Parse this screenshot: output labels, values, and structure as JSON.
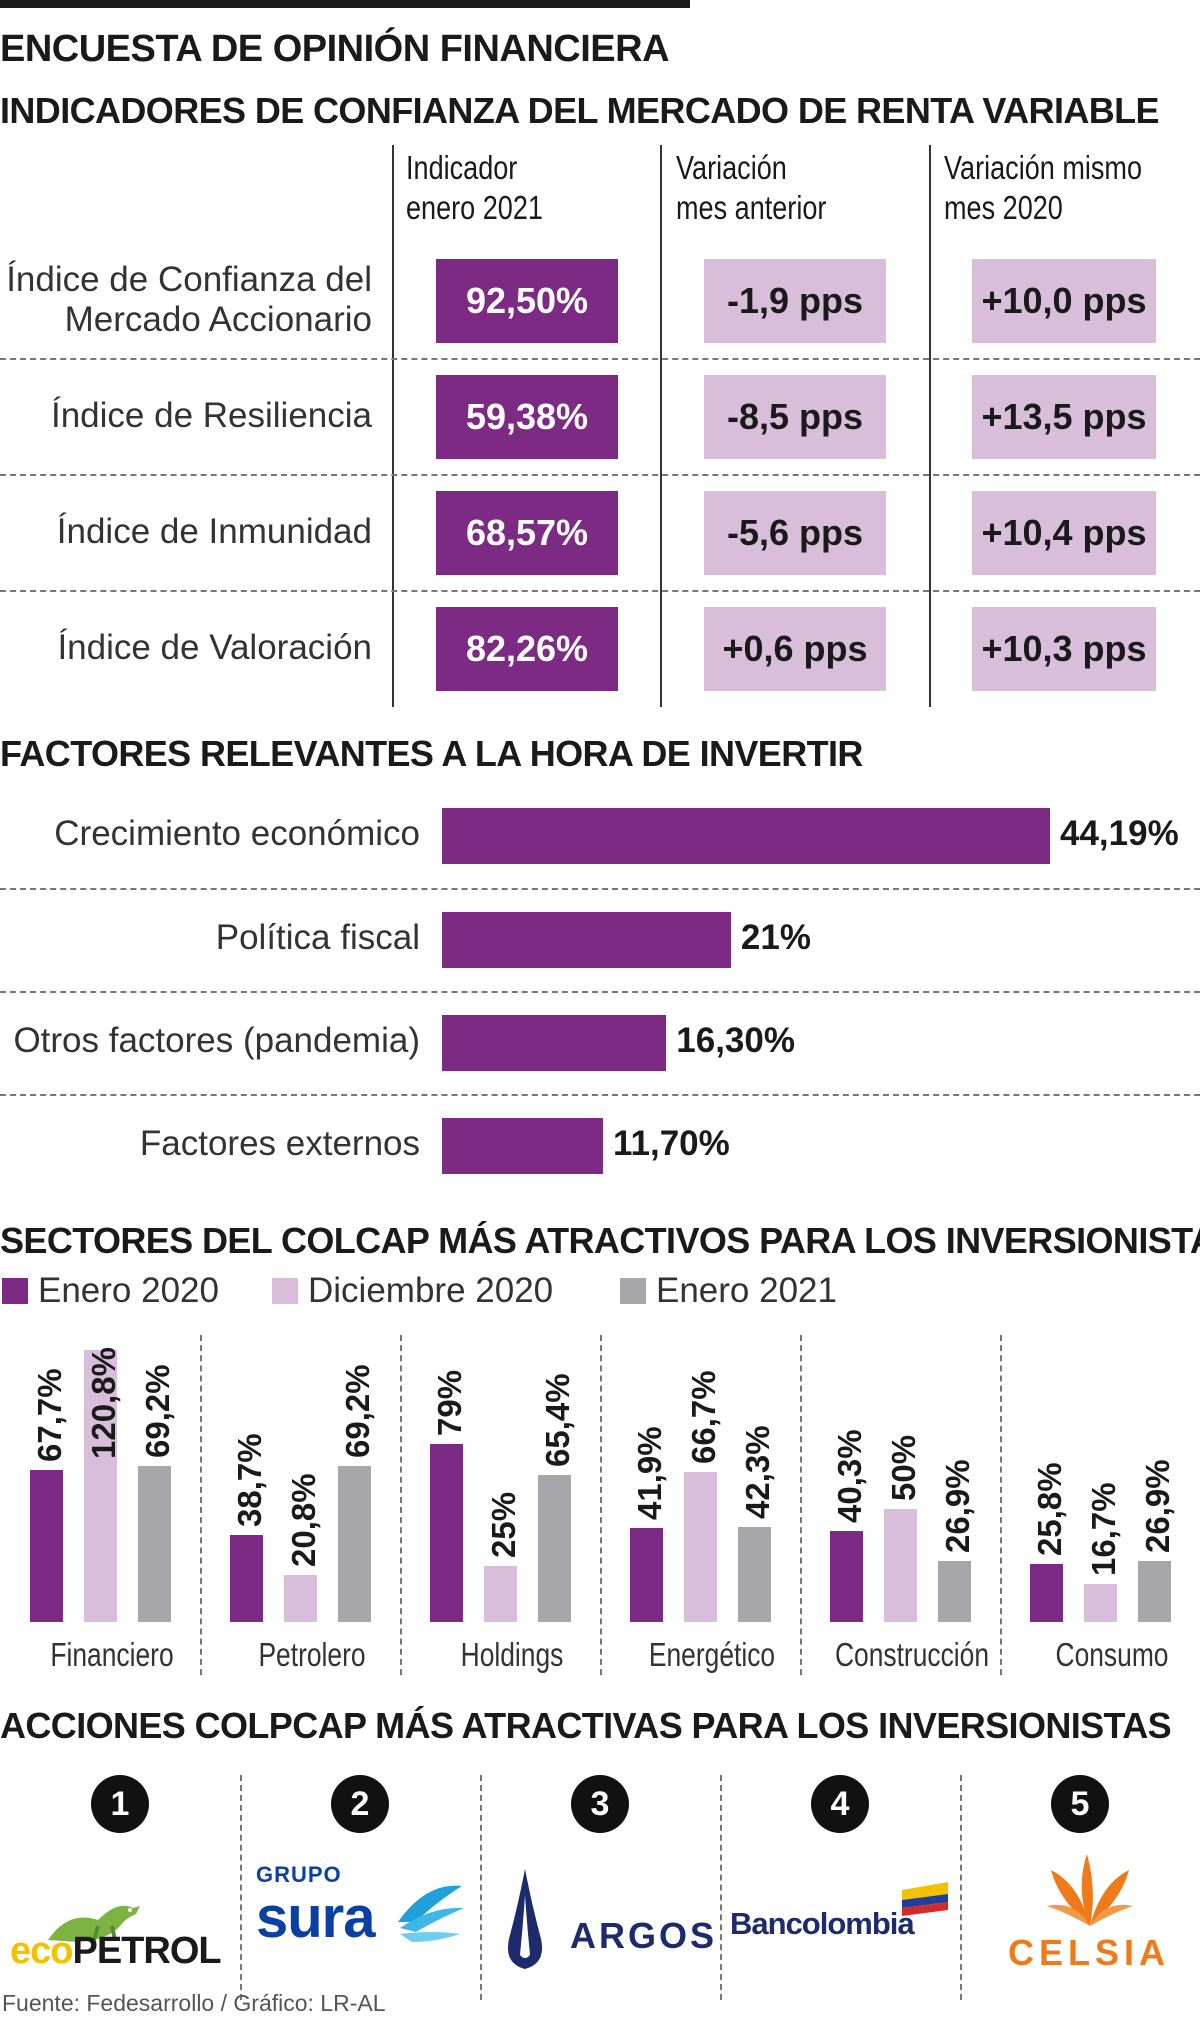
{
  "header": {
    "title": "ENCUESTA DE OPINIÓN FINANCIERA",
    "subtitle": "INDICADORES DE CONFIANZA DEL MERCADO DE RENTA VARIABLE"
  },
  "indicators": {
    "columns": [
      "Indicador enero 2021",
      "Variación mes anterior",
      "Variación mismo mes 2020"
    ],
    "col1_line1": "Indicador",
    "col1_line2": "enero 2021",
    "col2_line1": "Variación",
    "col2_line2": "mes anterior",
    "col3_line1": "Variación mismo",
    "col3_line2": "mes 2020",
    "rows": [
      {
        "label_line1": "Índice de Confianza del",
        "label_line2": "Mercado Accionario",
        "value": "92,50%",
        "var_month": "-1,9 pps",
        "var_year": "+10,0 pps"
      },
      {
        "label_line1": "Índice de Resiliencia",
        "label_line2": "",
        "value": "59,38%",
        "var_month": "-8,5 pps",
        "var_year": "+13,5 pps"
      },
      {
        "label_line1": "Índice de Inmunidad",
        "label_line2": "",
        "value": "68,57%",
        "var_month": "-5,6 pps",
        "var_year": "+10,4 pps"
      },
      {
        "label_line1": "Índice de Valoración",
        "label_line2": "",
        "value": "82,26%",
        "var_month": "+0,6 pps",
        "var_year": "+10,3 pps"
      }
    ]
  },
  "factors_title": "FACTORES RELEVANTES A LA HORA DE INVERTIR",
  "sectors_title": "SECTORES DEL COLCAP MÁS ATRACTIVOS PARA LOS INVERSIONISTAS",
  "stocks": {
    "title": "ACCIONES COLPCAP MÁS ATRACTIVAS PARA LOS INVERSIONISTAS",
    "items": [
      {
        "rank": "1",
        "name": "ecopetrol"
      },
      {
        "rank": "2",
        "name": "GRUPO sura"
      },
      {
        "rank": "3",
        "name": "ARGOS"
      },
      {
        "rank": "4",
        "name": "Bancolombia"
      },
      {
        "rank": "5",
        "name": "CELSIA"
      }
    ]
  },
  "logo_text": {
    "eco1": "eco",
    "eco2": "PETROL",
    "sura_small": "GRUPO",
    "sura_big": "sura",
    "argos": "ARGOS",
    "bancolombia": "Bancolombia",
    "celsia": "CELSIA"
  },
  "source": "Fuente: Fedesarrollo / Gráfico: LR-AL",
  "colors": {
    "dark_purple": "#7d2a85",
    "light_purple": "#d8bedb",
    "gray": "#a7a7ab"
  },
  "chart_data": [
    {
      "type": "bar",
      "orientation": "horizontal",
      "title": "FACTORES RELEVANTES A LA HORA DE INVERTIR",
      "categories": [
        "Crecimiento económico",
        "Política fiscal",
        "Otros factores (pandemia)",
        "Factores externos"
      ],
      "values": [
        44.19,
        21,
        16.3,
        11.7
      ],
      "labels": [
        "44,19%",
        "21%",
        "16,30%",
        "11,70%"
      ]
    },
    {
      "type": "bar",
      "orientation": "vertical",
      "title": "SECTORES DEL COLCAP MÁS ATRACTIVOS PARA LOS INVERSIONISTAS",
      "categories": [
        "Financiero",
        "Petrolero",
        "Holdings",
        "Energético",
        "Construcción",
        "Consumo"
      ],
      "series": [
        {
          "name": "Enero 2020",
          "color": "#7d2a85",
          "values": [
            67.7,
            38.7,
            79,
            41.9,
            40.3,
            25.8
          ],
          "labels": [
            "67,7%",
            "38,7%",
            "79%",
            "41,9%",
            "40,3%",
            "25,8%"
          ]
        },
        {
          "name": "Diciembre 2020",
          "color": "#d8bedb",
          "values": [
            120.8,
            20.8,
            25,
            66.7,
            50,
            16.7
          ],
          "labels": [
            "120,8%",
            "20,8%",
            "25%",
            "66,7%",
            "50%",
            "16,7%"
          ]
        },
        {
          "name": "Enero 2021",
          "color": "#a7a7ab",
          "values": [
            69.2,
            69.2,
            65.4,
            42.3,
            26.9,
            26.9
          ],
          "labels": [
            "69,2%",
            "69,2%",
            "65,4%",
            "42,3%",
            "26,9%",
            "26,9%"
          ]
        }
      ]
    }
  ]
}
